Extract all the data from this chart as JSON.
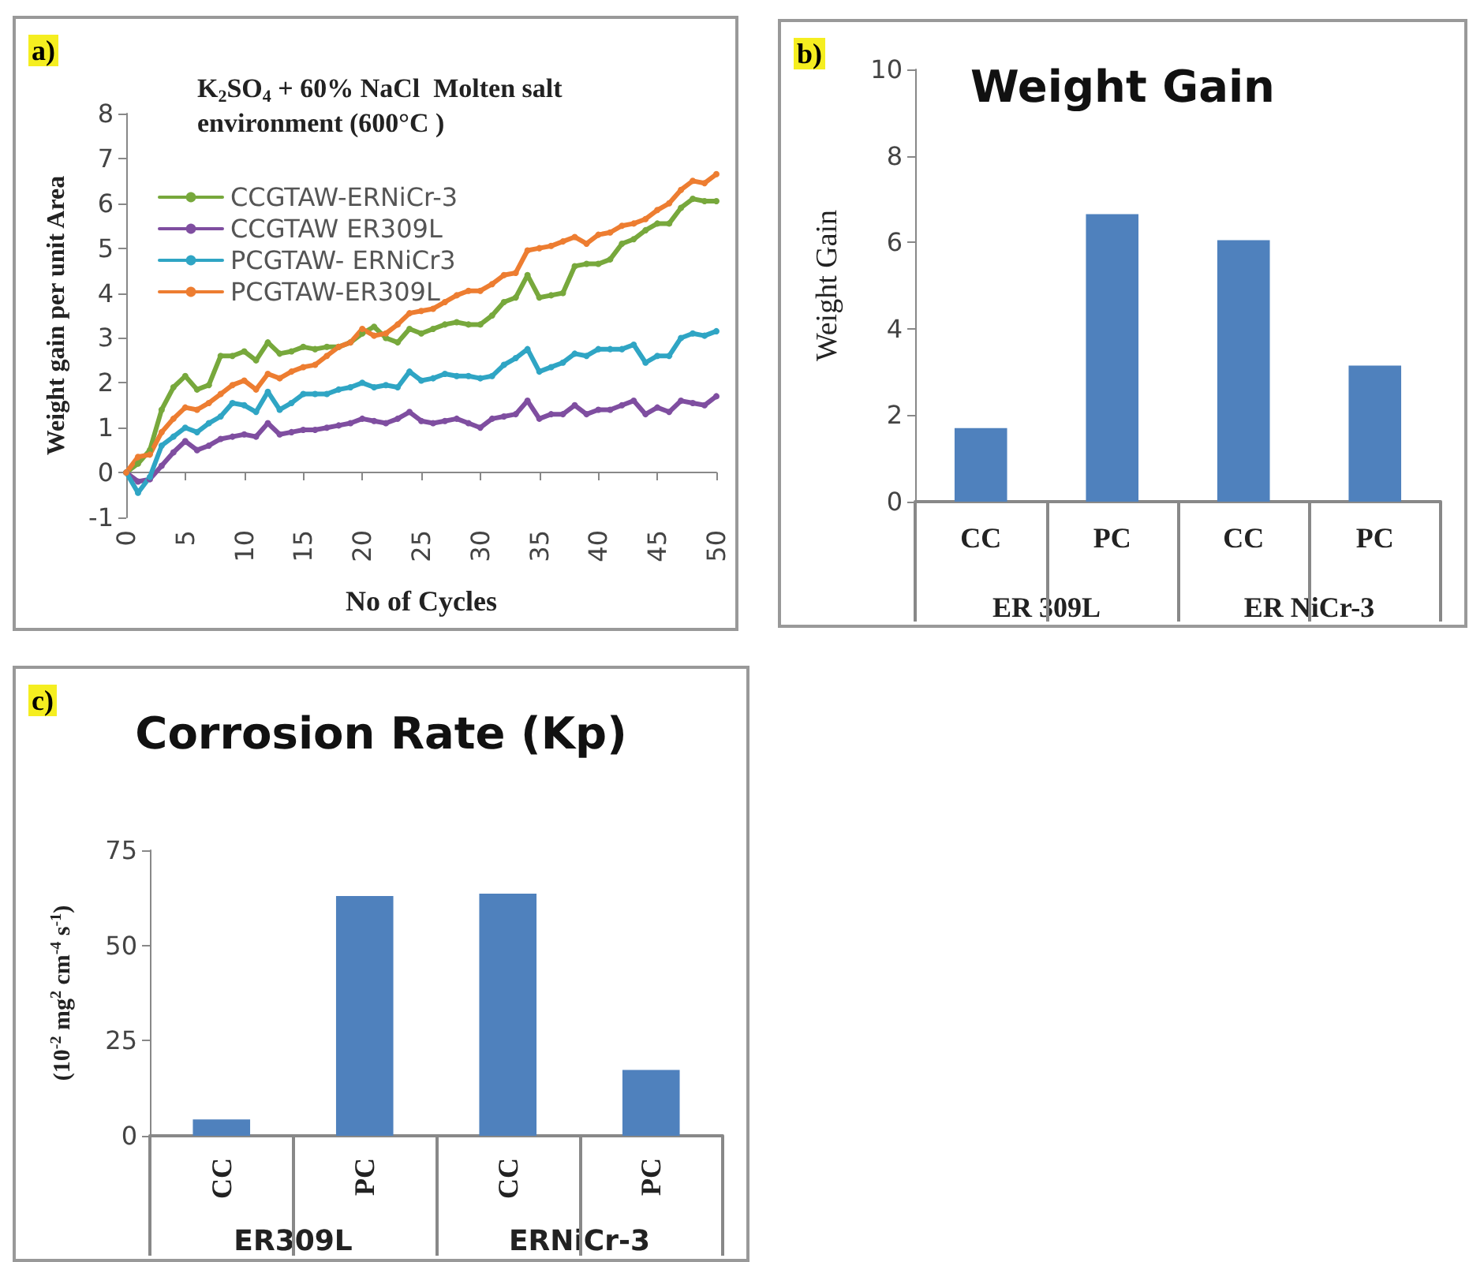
{
  "chart_data": [
    {
      "type": "line",
      "title": "K$_{2}$SO$_{4}$ + 60% NaCl  Molten salt environment (600°C )",
      "xlabel": "No of Cycles",
      "ylabel": "Weight gain per unit Area",
      "annotations": [
        "a)"
      ],
      "x": [
        0,
        1,
        2,
        3,
        4,
        5,
        6,
        7,
        8,
        9,
        10,
        11,
        12,
        13,
        14,
        15,
        16,
        17,
        18,
        19,
        20,
        21,
        22,
        23,
        24,
        25,
        26,
        27,
        28,
        29,
        30,
        31,
        32,
        33,
        34,
        35,
        36,
        37,
        38,
        39,
        40,
        41,
        42,
        43,
        44,
        45,
        46,
        47,
        48,
        49,
        50
      ],
      "series": [
        {
          "name": "CCGTAW-ERNiCr-3",
          "color": "#77a83c",
          "values": [
            0,
            0.2,
            0.5,
            1.4,
            1.9,
            2.15,
            1.85,
            1.95,
            2.6,
            2.6,
            2.7,
            2.5,
            2.9,
            2.65,
            2.7,
            2.8,
            2.75,
            2.8,
            2.8,
            2.9,
            3.1,
            3.25,
            3.0,
            2.9,
            3.2,
            3.1,
            3.2,
            3.3,
            3.35,
            3.3,
            3.3,
            3.5,
            3.8,
            3.9,
            4.4,
            3.9,
            3.95,
            4.0,
            4.6,
            4.65,
            4.65,
            4.75,
            5.1,
            5.2,
            5.4,
            5.55,
            5.55,
            5.9,
            6.1,
            6.05,
            6.05
          ]
        },
        {
          "name": "CCGTAW ER309L",
          "color": "#7f4ea0",
          "values": [
            0,
            -0.2,
            -0.15,
            0.15,
            0.45,
            0.7,
            0.5,
            0.6,
            0.75,
            0.8,
            0.85,
            0.8,
            1.1,
            0.85,
            0.9,
            0.95,
            0.95,
            1.0,
            1.05,
            1.1,
            1.2,
            1.15,
            1.1,
            1.2,
            1.35,
            1.15,
            1.1,
            1.15,
            1.2,
            1.1,
            1.0,
            1.2,
            1.25,
            1.3,
            1.6,
            1.2,
            1.3,
            1.3,
            1.5,
            1.3,
            1.4,
            1.4,
            1.5,
            1.6,
            1.3,
            1.45,
            1.35,
            1.6,
            1.55,
            1.5,
            1.7
          ]
        },
        {
          "name": "PCGTAW- ERNiCr3",
          "color": "#2fa5c4",
          "values": [
            0,
            -0.45,
            -0.1,
            0.6,
            0.8,
            1.0,
            0.9,
            1.1,
            1.25,
            1.55,
            1.5,
            1.35,
            1.8,
            1.4,
            1.55,
            1.75,
            1.75,
            1.75,
            1.85,
            1.9,
            2.0,
            1.9,
            1.95,
            1.9,
            2.25,
            2.05,
            2.1,
            2.2,
            2.15,
            2.15,
            2.1,
            2.15,
            2.4,
            2.55,
            2.75,
            2.25,
            2.35,
            2.45,
            2.65,
            2.6,
            2.75,
            2.75,
            2.75,
            2.85,
            2.45,
            2.6,
            2.6,
            3.0,
            3.1,
            3.05,
            3.15
          ]
        },
        {
          "name": "PCGTAW-ER309L",
          "color": "#ed7d31",
          "values": [
            0,
            0.35,
            0.4,
            0.9,
            1.2,
            1.45,
            1.4,
            1.55,
            1.75,
            1.95,
            2.05,
            1.85,
            2.2,
            2.1,
            2.25,
            2.35,
            2.4,
            2.6,
            2.8,
            2.9,
            3.2,
            3.05,
            3.1,
            3.3,
            3.55,
            3.6,
            3.65,
            3.8,
            3.95,
            4.05,
            4.05,
            4.2,
            4.4,
            4.45,
            4.95,
            5.0,
            5.05,
            5.15,
            5.25,
            5.1,
            5.3,
            5.35,
            5.5,
            5.55,
            5.65,
            5.85,
            6.0,
            6.3,
            6.5,
            6.45,
            6.65
          ]
        }
      ],
      "xlim": [
        0,
        50
      ],
      "xticks": [
        0,
        5,
        10,
        15,
        20,
        25,
        30,
        35,
        40,
        45,
        50
      ],
      "ylim": [
        -1,
        8
      ],
      "yticks": [
        -1,
        0,
        1,
        2,
        3,
        4,
        5,
        6,
        7,
        8
      ],
      "legend": "top left",
      "marker": "circle",
      "grid": false
    },
    {
      "type": "bar",
      "title": "Weight Gain",
      "ylabel": "Weight Gain",
      "annotations": [
        "b)",
        "ER 309L",
        "ER NiCr-3"
      ],
      "categories": [
        "CC",
        "PC",
        "CC",
        "PC"
      ],
      "values": [
        1.7,
        6.65,
        6.05,
        3.15
      ],
      "color": "#4f81bd",
      "ylim": [
        0,
        10
      ],
      "yticks": [
        0,
        2,
        4,
        6,
        8,
        10
      ],
      "grid": false,
      "legend": false
    },
    {
      "type": "bar",
      "title": "Corrosion Rate (Kp)",
      "ylabel": "(10$^{-2}$ mg$^{2}$ cm$^{-4}$ s$^{-1}$)",
      "annotations": [
        "c)",
        "ER309L",
        "ERNiCr-3"
      ],
      "categories": [
        "CC",
        "PC",
        "CC",
        "PC"
      ],
      "values": [
        4.3,
        63,
        63.6,
        17.3
      ],
      "color": "#4f81bd",
      "ylim": [
        0,
        75
      ],
      "yticks": [
        0,
        25,
        50,
        75
      ],
      "grid": false,
      "legend": false
    }
  ]
}
